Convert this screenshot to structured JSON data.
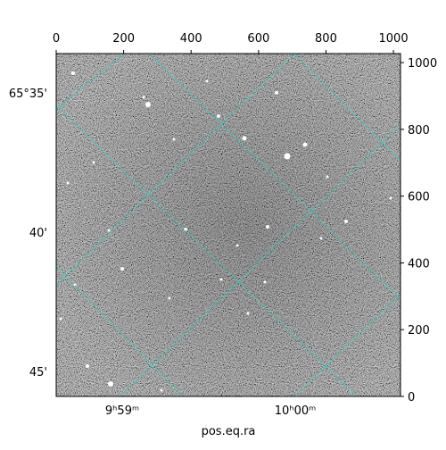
{
  "chart_data": {
    "type": "image",
    "xlim": [
      0,
      1021
    ],
    "ylim": [
      0,
      1027
    ],
    "xticks": [
      0,
      200,
      400,
      600,
      800,
      1000
    ],
    "yticks": [
      0,
      200,
      400,
      600,
      800,
      1000
    ],
    "dec_tick_labels": [
      "65°35'",
      "40'",
      "45'"
    ],
    "ra_tick_labels": [
      "9ʰ59ᵐ",
      "10ʰ00ᵐ"
    ],
    "xlabel": "pos.eq.ra"
  }
}
